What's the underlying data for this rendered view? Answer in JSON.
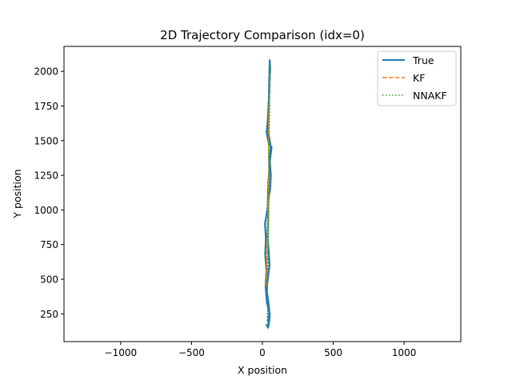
{
  "chart_data": {
    "type": "line",
    "title": "2D Trajectory Comparison (idx=0)",
    "xlabel": "X position",
    "ylabel": "Y position",
    "xlim": [
      -1400,
      1400
    ],
    "ylim": [
      50,
      2180
    ],
    "xticks": [
      -1000,
      -500,
      0,
      500,
      1000
    ],
    "xtick_labels": [
      "−1000",
      "−500",
      "0",
      "500",
      "1000"
    ],
    "yticks": [
      250,
      500,
      750,
      1000,
      1250,
      1500,
      1750,
      2000
    ],
    "ytick_labels": [
      "250",
      "500",
      "750",
      "1000",
      "1250",
      "1500",
      "1750",
      "2000"
    ],
    "grid": false,
    "legend_position": "top-right",
    "series": [
      {
        "name": "True",
        "color": "#1f77b4",
        "style": "solid",
        "points": [
          [
            30,
            170
          ],
          [
            40,
            150
          ],
          [
            48,
            260
          ],
          [
            32,
            330
          ],
          [
            22,
            450
          ],
          [
            28,
            560
          ],
          [
            20,
            680
          ],
          [
            25,
            800
          ],
          [
            18,
            900
          ],
          [
            35,
            1000
          ],
          [
            45,
            1100
          ],
          [
            55,
            1150
          ],
          [
            60,
            1250
          ],
          [
            52,
            1350
          ],
          [
            65,
            1450
          ],
          [
            40,
            1500
          ],
          [
            30,
            1560
          ],
          [
            38,
            1650
          ],
          [
            45,
            1800
          ],
          [
            48,
            1950
          ],
          [
            52,
            2080
          ],
          [
            55,
            2020
          ],
          [
            50,
            1900
          ],
          [
            45,
            1750
          ],
          [
            35,
            1600
          ],
          [
            58,
            1460
          ],
          [
            50,
            1300
          ],
          [
            42,
            1200
          ],
          [
            38,
            1050
          ],
          [
            40,
            950
          ],
          [
            35,
            800
          ],
          [
            45,
            700
          ],
          [
            50,
            600
          ],
          [
            40,
            520
          ],
          [
            30,
            420
          ],
          [
            42,
            340
          ],
          [
            52,
            240
          ],
          [
            45,
            170
          ]
        ]
      },
      {
        "name": "KF",
        "color": "#ff7f0e",
        "style": "dashed",
        "points": [
          [
            25,
            450
          ],
          [
            28,
            520
          ],
          [
            30,
            600
          ],
          [
            32,
            700
          ],
          [
            35,
            800
          ],
          [
            38,
            900
          ],
          [
            40,
            1000
          ],
          [
            42,
            1100
          ],
          [
            44,
            1200
          ],
          [
            46,
            1300
          ],
          [
            44,
            1400
          ],
          [
            42,
            1500
          ],
          [
            44,
            1600
          ],
          [
            46,
            1700
          ],
          [
            48,
            1800
          ],
          [
            50,
            1900
          ],
          [
            52,
            2000
          ]
        ]
      },
      {
        "name": "NNAKF",
        "color": "#2ca02c",
        "style": "dotted",
        "points": [
          [
            35,
            200
          ],
          [
            38,
            300
          ],
          [
            36,
            400
          ],
          [
            34,
            500
          ],
          [
            38,
            600
          ],
          [
            40,
            700
          ],
          [
            42,
            800
          ],
          [
            44,
            900
          ],
          [
            45,
            1000
          ],
          [
            46,
            1100
          ],
          [
            48,
            1200
          ],
          [
            46,
            1300
          ],
          [
            44,
            1400
          ],
          [
            46,
            1500
          ],
          [
            48,
            1600
          ],
          [
            50,
            1700
          ],
          [
            50,
            1800
          ],
          [
            52,
            1900
          ],
          [
            54,
            2000
          ],
          [
            53,
            2050
          ]
        ]
      }
    ]
  }
}
